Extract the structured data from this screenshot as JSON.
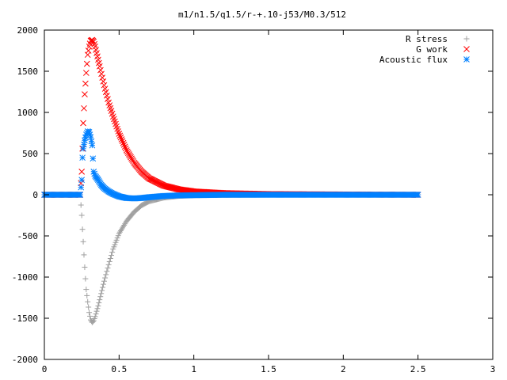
{
  "chart_data": {
    "type": "scatter",
    "title": "m1/n1.5/q1.5/r-+.10-j53/M0.3/512",
    "xlabel": "",
    "ylabel": "",
    "xlim": [
      0,
      3
    ],
    "ylim": [
      -2000,
      2000
    ],
    "xticks": [
      {
        "value": 0,
        "label": "0"
      },
      {
        "value": 0.5,
        "label": "0.5"
      },
      {
        "value": 1,
        "label": "1"
      },
      {
        "value": 1.5,
        "label": "1.5"
      },
      {
        "value": 2,
        "label": "2"
      },
      {
        "value": 2.5,
        "label": "2.5"
      },
      {
        "value": 3,
        "label": "3"
      }
    ],
    "yticks": [
      {
        "value": -2000,
        "label": "-2000"
      },
      {
        "value": -1500,
        "label": "-1500"
      },
      {
        "value": -1000,
        "label": "-1000"
      },
      {
        "value": -500,
        "label": "-500"
      },
      {
        "value": 0,
        "label": "0"
      },
      {
        "value": 500,
        "label": "500"
      },
      {
        "value": 1000,
        "label": "1000"
      },
      {
        "value": 1500,
        "label": "1500"
      },
      {
        "value": 2000,
        "label": "2000"
      }
    ],
    "grid": false,
    "legend_position": "top-right",
    "series": [
      {
        "name": "R stress",
        "marker": "plus",
        "color": "#a0a0a0",
        "x": [
          0.0,
          0.1,
          0.2,
          0.24,
          0.25,
          0.255,
          0.26,
          0.265,
          0.27,
          0.275,
          0.28,
          0.29,
          0.3,
          0.31,
          0.32,
          0.33,
          0.34,
          0.36,
          0.38,
          0.4,
          0.43,
          0.46,
          0.5,
          0.55,
          0.6,
          0.65,
          0.7,
          0.8,
          0.9,
          1.0,
          1.2,
          1.5,
          2.0,
          2.5
        ],
        "y": [
          0,
          0,
          0,
          0,
          -250,
          -420,
          -570,
          -730,
          -880,
          -1020,
          -1150,
          -1300,
          -1430,
          -1520,
          -1550,
          -1530,
          -1480,
          -1350,
          -1200,
          -1050,
          -850,
          -660,
          -470,
          -320,
          -210,
          -130,
          -80,
          -35,
          -15,
          -8,
          -3,
          0,
          0,
          0
        ]
      },
      {
        "name": "G work",
        "marker": "cross",
        "color": "#ff0000",
        "x": [
          0.0,
          0.1,
          0.2,
          0.24,
          0.25,
          0.255,
          0.26,
          0.265,
          0.27,
          0.275,
          0.28,
          0.285,
          0.29,
          0.3,
          0.31,
          0.32,
          0.33,
          0.34,
          0.35,
          0.37,
          0.4,
          0.43,
          0.46,
          0.5,
          0.55,
          0.6,
          0.65,
          0.7,
          0.8,
          0.9,
          1.0,
          1.2,
          1.5,
          2.0,
          2.5
        ],
        "y": [
          0,
          0,
          0,
          0,
          280,
          560,
          870,
          1050,
          1220,
          1350,
          1480,
          1590,
          1700,
          1800,
          1870,
          1880,
          1860,
          1800,
          1720,
          1560,
          1330,
          1120,
          950,
          740,
          540,
          390,
          280,
          200,
          110,
          65,
          40,
          20,
          8,
          3,
          0
        ]
      },
      {
        "name": "Acoustic flux",
        "marker": "star",
        "color": "#0080ff",
        "x": [
          0.0,
          0.1,
          0.2,
          0.24,
          0.25,
          0.255,
          0.26,
          0.27,
          0.28,
          0.29,
          0.3,
          0.31,
          0.32,
          0.33,
          0.34,
          0.36,
          0.38,
          0.4,
          0.43,
          0.46,
          0.5,
          0.55,
          0.6,
          0.65,
          0.7,
          0.8,
          0.9,
          1.0,
          1.2,
          1.5,
          2.0,
          2.5
        ],
        "y": [
          0,
          0,
          0,
          0,
          180,
          450,
          560,
          660,
          730,
          770,
          760,
          700,
          600,
          280,
          230,
          180,
          120,
          80,
          40,
          10,
          -20,
          -40,
          -45,
          -40,
          -30,
          -15,
          -8,
          -5,
          0,
          0,
          0,
          0
        ]
      }
    ]
  }
}
